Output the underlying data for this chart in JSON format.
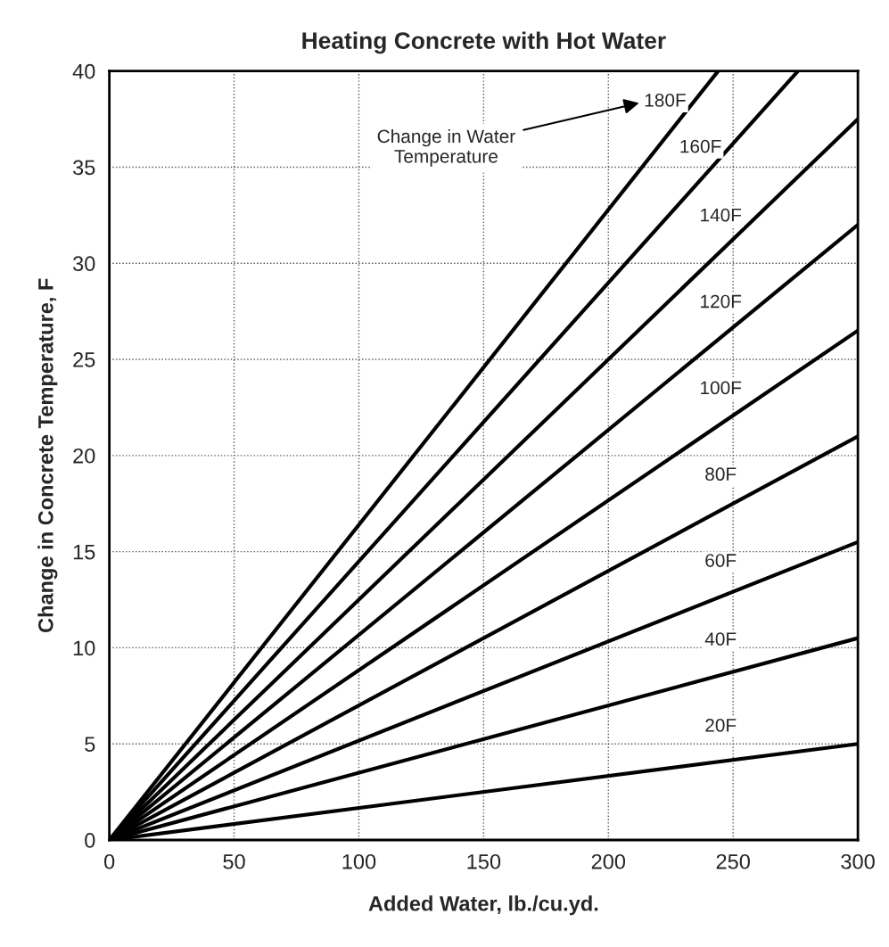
{
  "chart_data": {
    "type": "line",
    "title": "Heating Concrete with Hot Water",
    "xlabel": "Added Water, lb./cu.yd.",
    "ylabel": "Change in Concrete Temperature, F",
    "xlim": [
      0,
      300
    ],
    "ylim": [
      0,
      40
    ],
    "xticks": [
      0,
      50,
      100,
      150,
      200,
      250,
      300
    ],
    "yticks": [
      0,
      5,
      10,
      15,
      20,
      25,
      30,
      35,
      40
    ],
    "grid": true,
    "line_style": "solid",
    "marker": "none",
    "series": [
      {
        "name": "20F",
        "color": "#000000",
        "x": [
          0,
          300
        ],
        "values": [
          0,
          5
        ]
      },
      {
        "name": "40F",
        "color": "#000000",
        "x": [
          0,
          300
        ],
        "values": [
          0,
          10.5
        ]
      },
      {
        "name": "60F",
        "color": "#000000",
        "x": [
          0,
          300
        ],
        "values": [
          0,
          15.5
        ]
      },
      {
        "name": "80F",
        "color": "#000000",
        "x": [
          0,
          300
        ],
        "values": [
          0,
          21
        ]
      },
      {
        "name": "100F",
        "color": "#000000",
        "x": [
          0,
          300
        ],
        "values": [
          0,
          26.5
        ]
      },
      {
        "name": "120F",
        "color": "#000000",
        "x": [
          0,
          300
        ],
        "values": [
          0,
          32
        ]
      },
      {
        "name": "140F",
        "color": "#000000",
        "x": [
          0,
          300
        ],
        "values": [
          0,
          37.5
        ]
      },
      {
        "name": "160F",
        "color": "#000000",
        "x": [
          0,
          276
        ],
        "values": [
          0,
          40
        ]
      },
      {
        "name": "180F",
        "color": "#000000",
        "x": [
          0,
          244
        ],
        "values": [
          0,
          40
        ]
      }
    ],
    "annotations": [
      "Change in Water\nTemperature"
    ]
  }
}
